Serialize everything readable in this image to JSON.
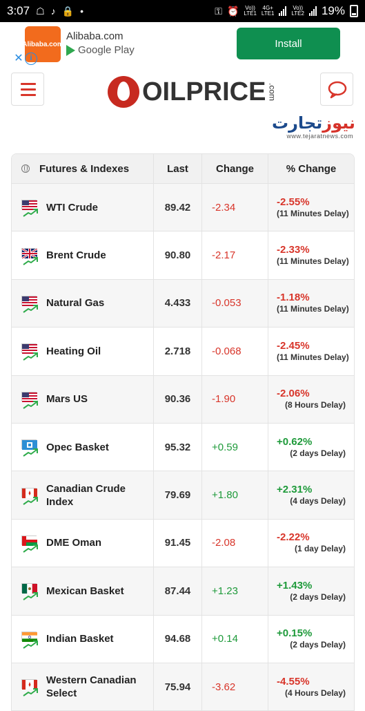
{
  "status_bar": {
    "time": "3:07",
    "volte1": "Vo))\nLTE1",
    "net": "4G+\nLTE1",
    "volte2": "Vo))\nLTE2",
    "battery": "19%"
  },
  "ad": {
    "logo_text": "Alibaba.com",
    "name": "Alibaba.com",
    "store": "Google Play",
    "install_label": "Install"
  },
  "header": {
    "logo_text": "OILPRICE",
    "logo_suffix": ".com",
    "watermark_a": "تجارت",
    "watermark_b": "نیوز",
    "watermark_url": "www.tejaratnews.com"
  },
  "table": {
    "headers": [
      "Futures & Indexes",
      "Last",
      "Change",
      "% Change"
    ],
    "rows": [
      {
        "name": "WTI Crude",
        "flag": "us",
        "last": "89.42",
        "change": "-2.34",
        "pct": "-2.55%",
        "delay": "(11 Minutes Delay)",
        "trend": "up"
      },
      {
        "name": "Brent Crude",
        "flag": "uk",
        "last": "90.80",
        "change": "-2.17",
        "pct": "-2.33%",
        "delay": "(11 Minutes Delay)",
        "trend": "up"
      },
      {
        "name": "Natural Gas",
        "flag": "us",
        "last": "4.433",
        "change": "-0.053",
        "pct": "-1.18%",
        "delay": "(11 Minutes Delay)",
        "trend": "up"
      },
      {
        "name": "Heating Oil",
        "flag": "us",
        "last": "2.718",
        "change": "-0.068",
        "pct": "-2.45%",
        "delay": "(11 Minutes Delay)",
        "trend": "up"
      },
      {
        "name": "Mars US",
        "flag": "us",
        "last": "90.36",
        "change": "-1.90",
        "pct": "-2.06%",
        "delay": "(8 Hours Delay)",
        "trend": "up"
      },
      {
        "name": "Opec Basket",
        "flag": "opec",
        "last": "95.32",
        "change": "+0.59",
        "pct": "+0.62%",
        "delay": "(2 days Delay)",
        "trend": "up"
      },
      {
        "name": "Canadian Crude Index",
        "flag": "ca",
        "last": "79.69",
        "change": "+1.80",
        "pct": "+2.31%",
        "delay": "(4 days Delay)",
        "trend": "up"
      },
      {
        "name": "DME Oman",
        "flag": "om",
        "last": "91.45",
        "change": "-2.08",
        "pct": "-2.22%",
        "delay": "(1 day Delay)",
        "trend": "up"
      },
      {
        "name": "Mexican Basket",
        "flag": "mx",
        "last": "87.44",
        "change": "+1.23",
        "pct": "+1.43%",
        "delay": "(2 days Delay)",
        "trend": "up"
      },
      {
        "name": "Indian Basket",
        "flag": "in",
        "last": "94.68",
        "change": "+0.14",
        "pct": "+0.15%",
        "delay": "(2 days Delay)",
        "trend": "up"
      },
      {
        "name": "Western Canadian Select",
        "flag": "ca",
        "last": "75.94",
        "change": "-3.62",
        "pct": "-4.55%",
        "delay": "(4 Hours Delay)",
        "trend": "up"
      }
    ]
  },
  "colors": {
    "negative": "#d8352a",
    "positive": "#1e9a3a",
    "brand": "#c72a20",
    "install": "#0f8f50"
  }
}
